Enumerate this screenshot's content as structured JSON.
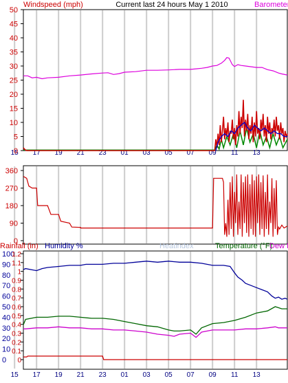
{
  "header": {
    "left_title": "Windspeed (mph)",
    "center_title": "Current last 24 hours May 1 2010",
    "right_title": "Barometer"
  },
  "colors": {
    "windspeed": "#cc0000",
    "barometer": "#dd00dd",
    "gust": "#dd0000",
    "avg_wind": "#0000cc",
    "wind_green": "#008800",
    "direction": "#cc0000",
    "humidity": "#000099",
    "temperature": "#006600",
    "dew": "#cc00cc",
    "rainfall": "#cc0000",
    "heatindex": "#b8c8e0",
    "grid": "#cccccc"
  },
  "chart_data": [
    {
      "type": "line",
      "panel": "wind",
      "left_axis": {
        "ticks": [
          "50",
          "45",
          "40",
          "35",
          "30",
          "25",
          "20",
          "15",
          "10",
          "5",
          "0"
        ],
        "ylim": [
          0,
          50
        ]
      },
      "x_ticks": [
        "17",
        "19",
        "21",
        "23",
        "01",
        "03",
        "05",
        "07",
        "09",
        "11",
        "13",
        "15"
      ],
      "x_range_hours": [
        15.8,
        39.8
      ],
      "barometer_wind_units": [
        [
          15.8,
          26.5
        ],
        [
          16.2,
          26.5
        ],
        [
          16.6,
          25.8
        ],
        [
          17.0,
          26.0
        ],
        [
          17.5,
          25.5
        ],
        [
          18.0,
          25.8
        ],
        [
          19.0,
          26.0
        ],
        [
          20.0,
          26.5
        ],
        [
          21.0,
          26.8
        ],
        [
          22.0,
          27.2
        ],
        [
          23.0,
          27.5
        ],
        [
          23.5,
          27.6
        ],
        [
          24.0,
          27.0
        ],
        [
          24.5,
          27.3
        ],
        [
          25.0,
          27.8
        ],
        [
          26.0,
          28.0
        ],
        [
          27.0,
          28.5
        ],
        [
          28.0,
          28.5
        ],
        [
          29.0,
          28.6
        ],
        [
          30.0,
          28.8
        ],
        [
          31.0,
          28.8
        ],
        [
          31.5,
          29.0
        ],
        [
          32.0,
          29.2
        ],
        [
          32.5,
          29.5
        ],
        [
          33.0,
          30.0
        ],
        [
          33.4,
          30.2
        ],
        [
          33.8,
          31.0
        ],
        [
          34.1,
          32.0
        ],
        [
          34.3,
          33.0
        ],
        [
          34.5,
          32.8
        ],
        [
          34.8,
          30.5
        ],
        [
          35.0,
          29.8
        ],
        [
          35.3,
          30.5
        ],
        [
          35.6,
          30.2
        ],
        [
          36.0,
          30.0
        ],
        [
          37.0,
          29.5
        ],
        [
          37.5,
          29.5
        ],
        [
          38.0,
          28.7
        ],
        [
          38.5,
          28.3
        ],
        [
          39.0,
          27.5
        ],
        [
          39.3,
          27.2
        ],
        [
          39.8,
          26.8
        ]
      ],
      "windspeed_mph": [
        [
          15.8,
          1.0
        ],
        [
          15.9,
          0.5
        ],
        [
          16.0,
          0.2
        ],
        [
          16.1,
          0.0
        ],
        [
          33.2,
          0.0
        ],
        [
          33.3,
          4.0
        ],
        [
          33.4,
          1.0
        ],
        [
          33.5,
          6.0
        ],
        [
          33.6,
          2.0
        ],
        [
          33.7,
          9.0
        ],
        [
          33.8,
          3.0
        ],
        [
          33.9,
          7.0
        ],
        [
          34.0,
          12.0
        ],
        [
          34.1,
          4.0
        ],
        [
          34.2,
          8.0
        ],
        [
          34.3,
          5.0
        ],
        [
          34.4,
          10.0
        ],
        [
          34.5,
          3.0
        ],
        [
          34.6,
          7.0
        ],
        [
          34.7,
          6.0
        ],
        [
          34.8,
          11.0
        ],
        [
          34.9,
          4.0
        ],
        [
          35.0,
          8.0
        ],
        [
          35.1,
          2.0
        ],
        [
          35.2,
          9.0
        ],
        [
          35.3,
          5.0
        ],
        [
          35.4,
          14.0
        ],
        [
          35.5,
          6.0
        ],
        [
          35.6,
          12.0
        ],
        [
          35.7,
          8.0
        ],
        [
          35.8,
          18.0
        ],
        [
          35.9,
          5.0
        ],
        [
          36.0,
          11.0
        ],
        [
          36.1,
          7.0
        ],
        [
          36.2,
          13.0
        ],
        [
          36.3,
          4.0
        ],
        [
          36.4,
          9.0
        ],
        [
          36.5,
          6.0
        ],
        [
          36.6,
          12.0
        ],
        [
          36.7,
          3.0
        ],
        [
          36.8,
          10.0
        ],
        [
          36.9,
          5.0
        ],
        [
          37.0,
          14.0
        ],
        [
          37.1,
          6.0
        ],
        [
          37.2,
          8.0
        ],
        [
          37.3,
          4.0
        ],
        [
          37.4,
          11.0
        ],
        [
          37.5,
          7.0
        ],
        [
          37.6,
          13.0
        ],
        [
          37.7,
          5.0
        ],
        [
          37.8,
          9.0
        ],
        [
          37.9,
          3.0
        ],
        [
          38.0,
          12.0
        ],
        [
          38.1,
          6.0
        ],
        [
          38.2,
          10.0
        ],
        [
          38.3,
          4.0
        ],
        [
          38.4,
          8.0
        ],
        [
          38.5,
          6.0
        ],
        [
          38.6,
          11.0
        ],
        [
          38.7,
          5.0
        ],
        [
          38.8,
          12.0
        ],
        [
          38.9,
          7.0
        ],
        [
          39.0,
          9.0
        ],
        [
          39.1,
          4.0
        ],
        [
          39.2,
          10.0
        ],
        [
          39.3,
          6.0
        ],
        [
          39.4,
          8.0
        ],
        [
          39.5,
          3.0
        ],
        [
          39.6,
          7.0
        ],
        [
          39.7,
          5.0
        ],
        [
          39.8,
          6.0
        ]
      ],
      "avg_wind_mph": [
        [
          33.3,
          0.0
        ],
        [
          33.5,
          3.0
        ],
        [
          33.8,
          5.0
        ],
        [
          34.1,
          6.0
        ],
        [
          34.4,
          5.0
        ],
        [
          34.7,
          7.0
        ],
        [
          35.0,
          6.0
        ],
        [
          35.3,
          8.0
        ],
        [
          35.6,
          9.0
        ],
        [
          35.9,
          10.0
        ],
        [
          36.2,
          8.0
        ],
        [
          36.5,
          7.0
        ],
        [
          36.8,
          9.0
        ],
        [
          37.1,
          8.0
        ],
        [
          37.4,
          7.0
        ],
        [
          37.7,
          8.0
        ],
        [
          38.0,
          7.0
        ],
        [
          38.3,
          6.0
        ],
        [
          38.6,
          7.0
        ],
        [
          38.9,
          6.0
        ],
        [
          39.2,
          6.0
        ],
        [
          39.5,
          5.0
        ],
        [
          39.8,
          5.0
        ]
      ],
      "green_wind_mph": [
        [
          15.8,
          0.2
        ],
        [
          33.2,
          0.2
        ],
        [
          33.4,
          2.0
        ],
        [
          33.6,
          0.5
        ],
        [
          33.8,
          4.0
        ],
        [
          34.0,
          1.0
        ],
        [
          34.3,
          5.0
        ],
        [
          34.6,
          2.0
        ],
        [
          34.9,
          6.0
        ],
        [
          35.2,
          1.0
        ],
        [
          35.5,
          7.0
        ],
        [
          35.8,
          2.0
        ],
        [
          36.1,
          8.0
        ],
        [
          36.4,
          3.0
        ],
        [
          36.7,
          6.0
        ],
        [
          37.0,
          1.0
        ],
        [
          37.3,
          7.0
        ],
        [
          37.6,
          2.0
        ],
        [
          37.9,
          5.0
        ],
        [
          38.2,
          1.0
        ],
        [
          38.5,
          6.0
        ],
        [
          38.8,
          2.0
        ],
        [
          39.1,
          5.0
        ],
        [
          39.4,
          1.0
        ],
        [
          39.8,
          4.0
        ]
      ]
    },
    {
      "type": "line",
      "panel": "wind-direction",
      "left_axis": {
        "ticks": [
          "360",
          "270",
          "180",
          "90",
          "0"
        ],
        "ylim": [
          0,
          360
        ]
      },
      "direction_deg": [
        [
          15.8,
          330
        ],
        [
          16.1,
          320
        ],
        [
          16.3,
          280
        ],
        [
          16.6,
          270
        ],
        [
          17.0,
          270
        ],
        [
          17.1,
          180
        ],
        [
          18.0,
          180
        ],
        [
          18.3,
          135
        ],
        [
          19.0,
          135
        ],
        [
          19.2,
          100
        ],
        [
          20.0,
          90
        ],
        [
          20.2,
          70
        ],
        [
          21.0,
          68
        ],
        [
          21.0,
          65
        ],
        [
          33.0,
          65
        ],
        [
          33.1,
          320
        ],
        [
          33.9,
          320
        ],
        [
          34.0,
          300
        ],
        [
          34.1,
          30
        ],
        [
          34.2,
          90
        ],
        [
          34.3,
          20
        ],
        [
          34.4,
          210
        ],
        [
          34.5,
          30
        ],
        [
          34.6,
          300
        ],
        [
          34.7,
          60
        ],
        [
          34.8,
          330
        ],
        [
          34.9,
          20
        ],
        [
          35.0,
          250
        ],
        [
          35.1,
          90
        ],
        [
          35.2,
          340
        ],
        [
          35.3,
          30
        ],
        [
          35.4,
          200
        ],
        [
          35.5,
          60
        ],
        [
          35.6,
          340
        ],
        [
          35.7,
          20
        ],
        [
          35.8,
          300
        ],
        [
          35.9,
          90
        ],
        [
          36.0,
          330
        ],
        [
          36.1,
          40
        ],
        [
          36.2,
          340
        ],
        [
          36.3,
          20
        ],
        [
          36.4,
          290
        ],
        [
          36.5,
          60
        ],
        [
          36.6,
          340
        ],
        [
          36.7,
          30
        ],
        [
          36.8,
          310
        ],
        [
          36.9,
          20
        ],
        [
          37.0,
          330
        ],
        [
          37.1,
          90
        ],
        [
          37.2,
          340
        ],
        [
          37.3,
          30
        ],
        [
          37.4,
          300
        ],
        [
          37.5,
          60
        ],
        [
          37.6,
          335
        ],
        [
          37.7,
          20
        ],
        [
          37.8,
          250
        ],
        [
          37.9,
          60
        ],
        [
          38.0,
          340
        ],
        [
          38.1,
          30
        ],
        [
          38.2,
          200
        ],
        [
          38.3,
          90
        ],
        [
          38.4,
          320
        ],
        [
          38.5,
          20
        ],
        [
          38.6,
          270
        ],
        [
          38.7,
          60
        ],
        [
          38.8,
          310
        ],
        [
          38.9,
          30
        ],
        [
          39.0,
          70
        ],
        [
          39.1,
          60
        ],
        [
          39.3,
          80
        ],
        [
          39.5,
          65
        ],
        [
          39.8,
          75
        ]
      ]
    },
    {
      "type": "line",
      "panel": "humidity-temperature",
      "header": {
        "rain": "Rainfall (in)",
        "humidity": "Humidity %",
        "heatindex": "Heatindex",
        "temperature": "Temperature (°F)",
        "dew": "Dew Point"
      },
      "left_axis_humidity": {
        "ticks": [
          "100",
          "90",
          "80",
          "70",
          "60",
          "50",
          "40",
          "30",
          "20",
          "10",
          "0"
        ],
        "ylim": [
          0,
          100
        ]
      },
      "left_axis_rain": {
        "ticks": [
          "1.2",
          "1.1",
          "1",
          "0.9",
          "0.8",
          "0.7",
          "0.6",
          "0.5",
          "0.4",
          "0.3",
          "0.2",
          "0.1",
          "0"
        ],
        "ylim": [
          0,
          1.2
        ]
      },
      "humidity_pct": [
        [
          15.8,
          85
        ],
        [
          16.0,
          86
        ],
        [
          16.5,
          85
        ],
        [
          17.0,
          84
        ],
        [
          17.5,
          86
        ],
        [
          18.0,
          87
        ],
        [
          19.0,
          88
        ],
        [
          20.0,
          89
        ],
        [
          21.0,
          89
        ],
        [
          21.5,
          90
        ],
        [
          22.0,
          90
        ],
        [
          23.0,
          90
        ],
        [
          24.0,
          91
        ],
        [
          25.0,
          91
        ],
        [
          26.0,
          92
        ],
        [
          27.0,
          93
        ],
        [
          28.0,
          92
        ],
        [
          29.0,
          93
        ],
        [
          30.0,
          92
        ],
        [
          31.0,
          92
        ],
        [
          32.0,
          91
        ],
        [
          33.0,
          89
        ],
        [
          34.0,
          89
        ],
        [
          34.6,
          88
        ],
        [
          35.0,
          82
        ],
        [
          35.3,
          78
        ],
        [
          35.7,
          75
        ],
        [
          36.0,
          72
        ],
        [
          36.5,
          70
        ],
        [
          37.0,
          68
        ],
        [
          37.5,
          66
        ],
        [
          38.0,
          64
        ],
        [
          38.4,
          60
        ],
        [
          38.7,
          58
        ],
        [
          39.0,
          59
        ],
        [
          39.3,
          57
        ],
        [
          39.6,
          58
        ],
        [
          39.8,
          57
        ]
      ],
      "temperature_f": [
        [
          15.8,
          33
        ],
        [
          16.0,
          38
        ],
        [
          17.0,
          40
        ],
        [
          18.0,
          40
        ],
        [
          19.0,
          41
        ],
        [
          20.0,
          41
        ],
        [
          21.0,
          40
        ],
        [
          22.0,
          39
        ],
        [
          23.0,
          39
        ],
        [
          24.0,
          38
        ],
        [
          25.0,
          36
        ],
        [
          26.0,
          34
        ],
        [
          27.0,
          32
        ],
        [
          28.0,
          31
        ],
        [
          29.0,
          28
        ],
        [
          29.5,
          27
        ],
        [
          30.0,
          27
        ],
        [
          31.0,
          28
        ],
        [
          31.5,
          24
        ],
        [
          32.0,
          30
        ],
        [
          33.0,
          34
        ],
        [
          34.0,
          35
        ],
        [
          35.0,
          37
        ],
        [
          36.0,
          40
        ],
        [
          37.0,
          44
        ],
        [
          38.0,
          46
        ],
        [
          38.7,
          50
        ],
        [
          39.0,
          49
        ],
        [
          39.3,
          48
        ],
        [
          39.8,
          48
        ]
      ],
      "dewpoint_f": [
        [
          15.8,
          29
        ],
        [
          16.0,
          29
        ],
        [
          17.0,
          30
        ],
        [
          18.0,
          30
        ],
        [
          19.0,
          31
        ],
        [
          20.0,
          30
        ],
        [
          21.0,
          30
        ],
        [
          22.0,
          29
        ],
        [
          23.0,
          29
        ],
        [
          24.0,
          28
        ],
        [
          25.0,
          28
        ],
        [
          26.0,
          27
        ],
        [
          27.0,
          26
        ],
        [
          28.0,
          24
        ],
        [
          29.0,
          23
        ],
        [
          29.5,
          22
        ],
        [
          30.0,
          24
        ],
        [
          31.0,
          25
        ],
        [
          31.5,
          21
        ],
        [
          32.0,
          26
        ],
        [
          33.0,
          28
        ],
        [
          34.0,
          28
        ],
        [
          35.0,
          28
        ],
        [
          36.0,
          29
        ],
        [
          37.0,
          29
        ],
        [
          38.0,
          30
        ],
        [
          38.7,
          31
        ],
        [
          39.0,
          30
        ],
        [
          39.3,
          30
        ],
        [
          39.8,
          30
        ]
      ],
      "rainfall_in": [
        [
          15.8,
          0.03
        ],
        [
          16.1,
          0.03
        ],
        [
          16.2,
          0.04
        ],
        [
          23.0,
          0.04
        ],
        [
          23.1,
          0.0
        ],
        [
          39.8,
          0.0
        ]
      ]
    }
  ]
}
